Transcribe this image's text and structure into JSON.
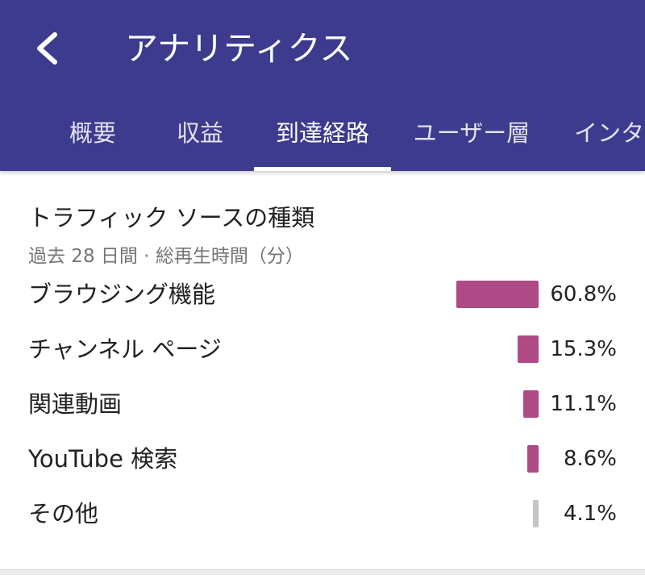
{
  "app_bar": {
    "back_icon": "chevron-left-icon",
    "title": "アナリティクス",
    "colors": {
      "background": "#3c3b8e",
      "text": "#ffffff"
    }
  },
  "tabs": [
    {
      "label": "概要",
      "selected": false
    },
    {
      "label": "収益",
      "selected": false
    },
    {
      "label": "到達経路",
      "selected": true
    },
    {
      "label": "ユーザー層",
      "selected": false
    },
    {
      "label": "インタ",
      "selected": false
    }
  ],
  "traffic_sources": {
    "title": "トラフィック ソースの種類",
    "subtitle": "過去 28 日間 · 総再生時間（分）",
    "items": [
      {
        "label": "ブラウジング機能",
        "value": 60.8,
        "value_label": "60.8%",
        "bar_color": "#ae4a86"
      },
      {
        "label": "チャンネル ページ",
        "value": 15.3,
        "value_label": "15.3%",
        "bar_color": "#ae4a86"
      },
      {
        "label": "関連動画",
        "value": 11.1,
        "value_label": "11.1%",
        "bar_color": "#ae4a86"
      },
      {
        "label": "YouTube 検索",
        "value": 8.6,
        "value_label": "8.6%",
        "bar_color": "#ae4a86"
      },
      {
        "label": "その他",
        "value": 4.1,
        "value_label": "4.1%",
        "bar_color": "#c4c4c4"
      }
    ]
  }
}
